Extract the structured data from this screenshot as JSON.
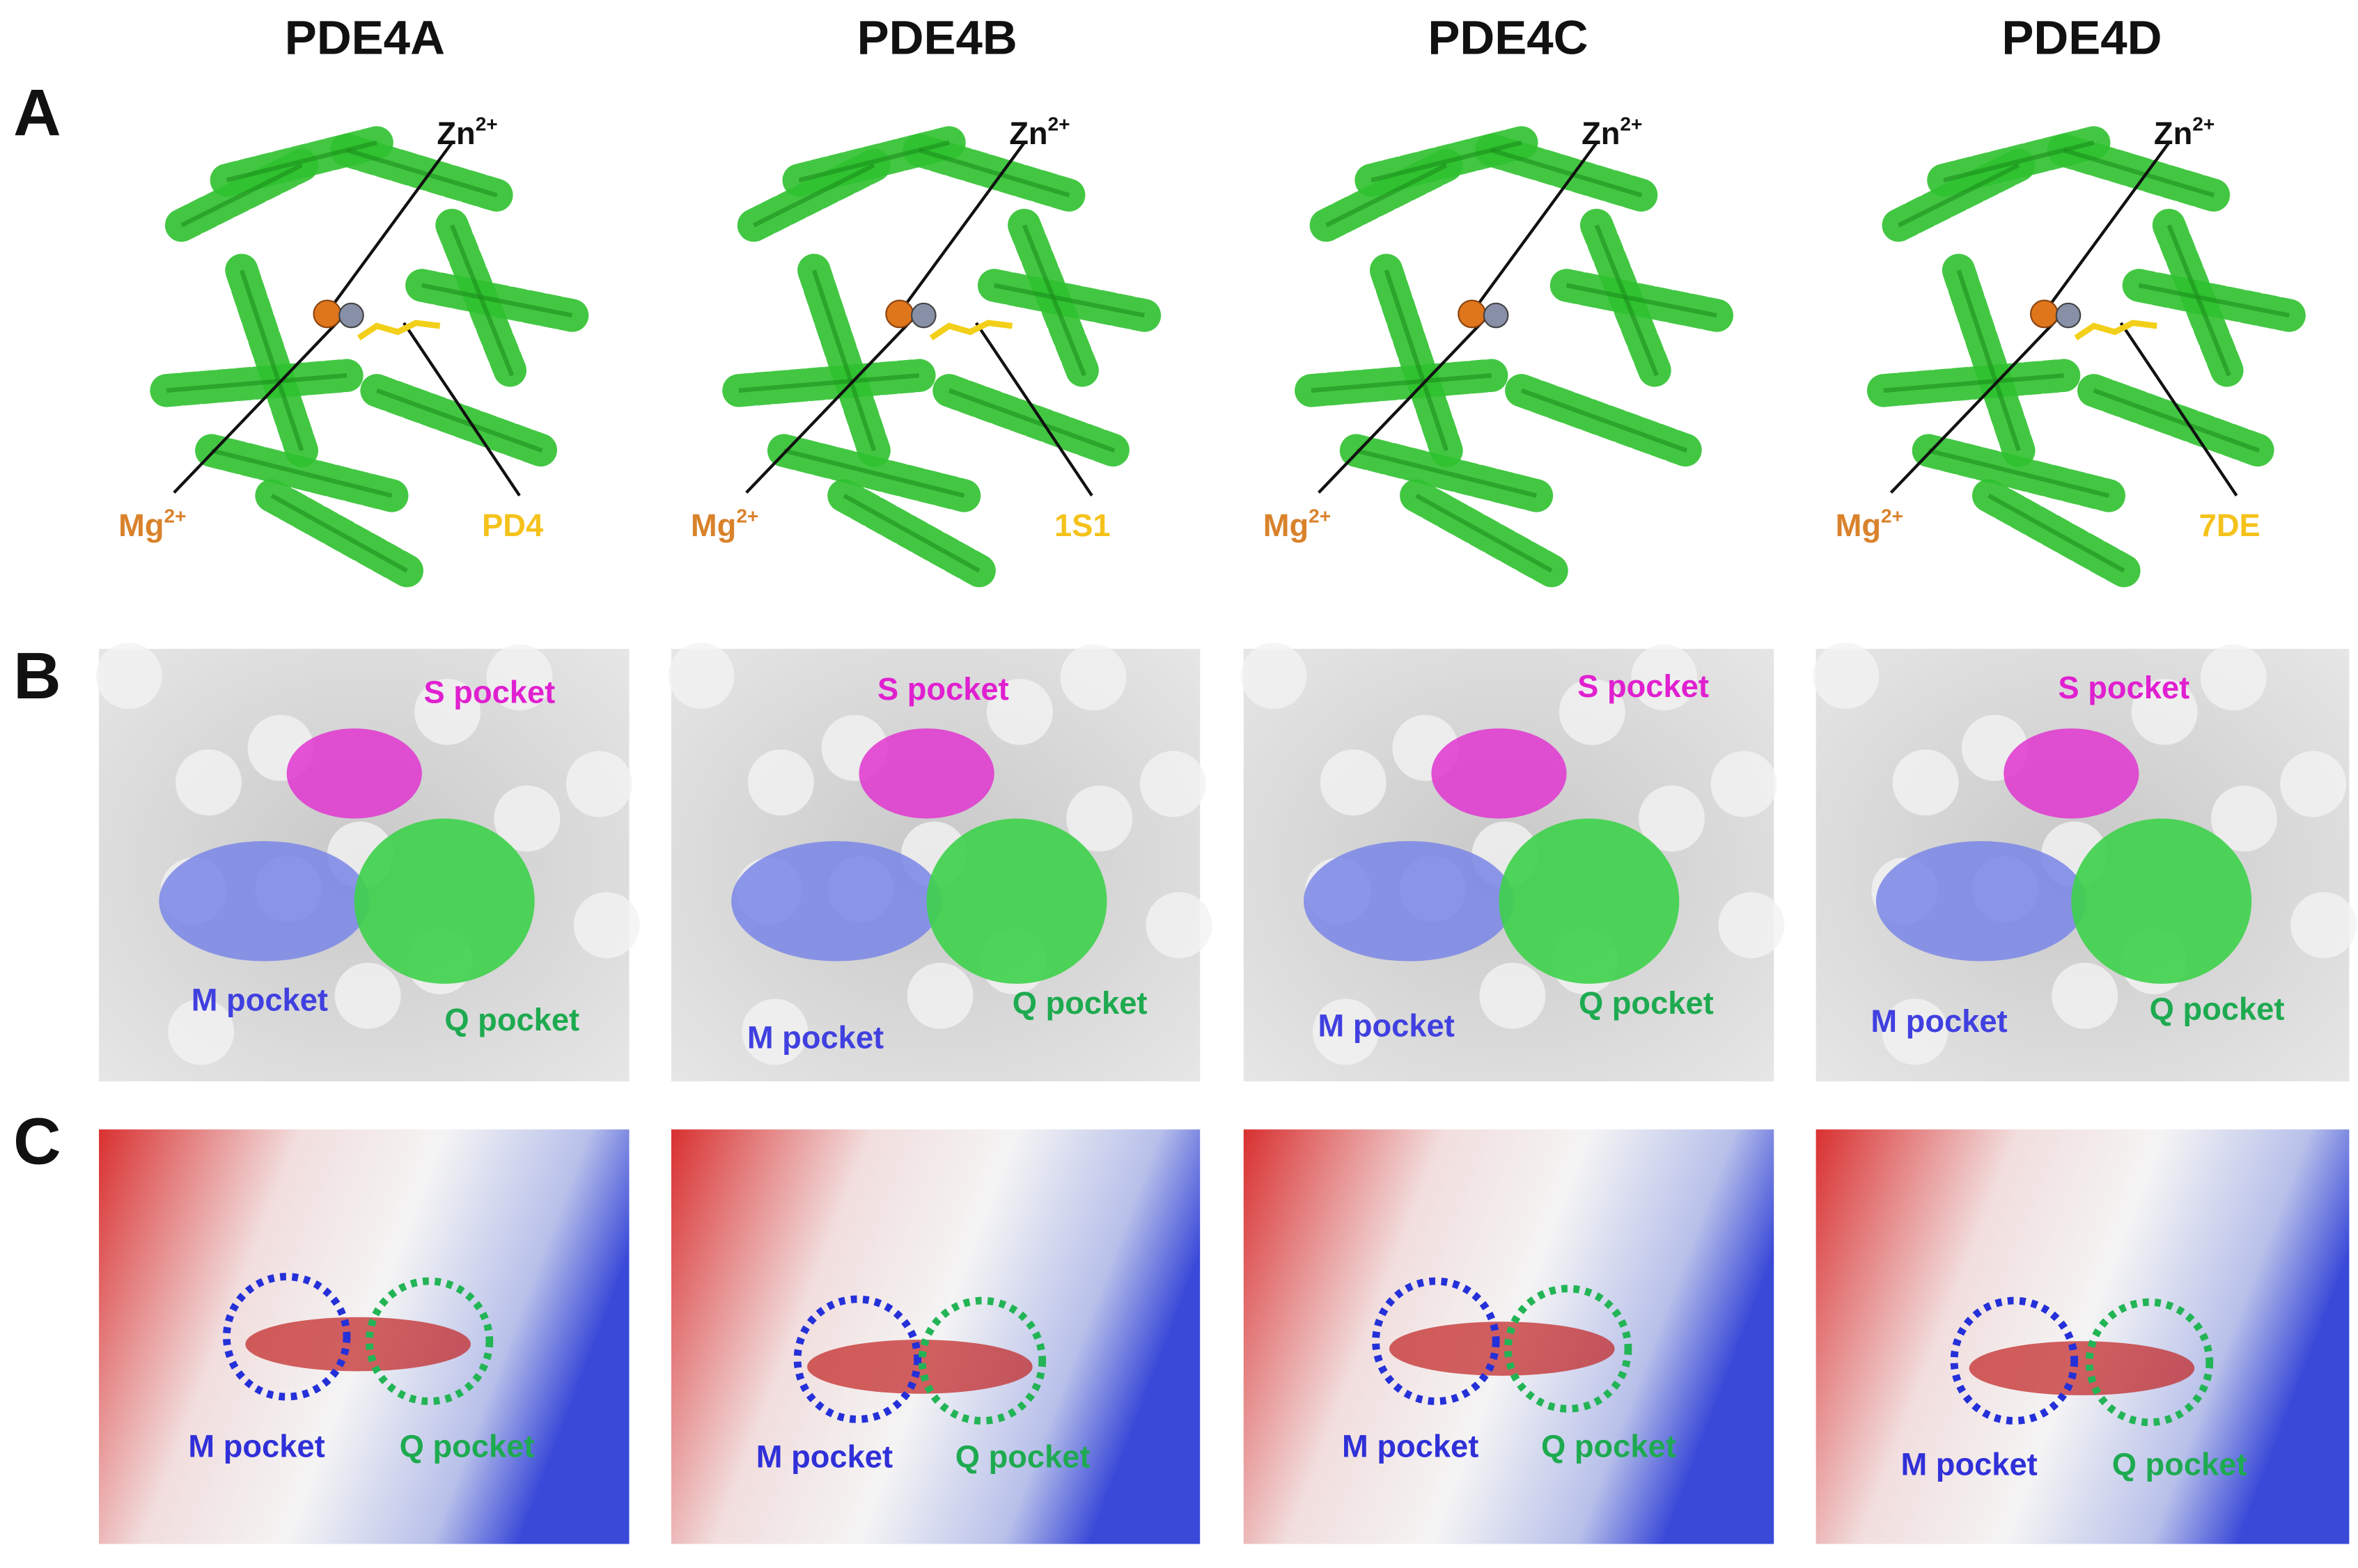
{
  "panel_labels": [
    "A",
    "B",
    "C"
  ],
  "columns": [
    {
      "title": "PDE4A",
      "zn": "Zn",
      "zn_charge": "2+",
      "mg": "Mg",
      "mg_charge": "2+",
      "ligand": "PD4",
      "s_pocket": "S pocket",
      "m_pocket_b": "M pocket",
      "q_pocket_b": "Q pocket",
      "m_pocket_c": "M pocket",
      "q_pocket_c": "Q pocket"
    },
    {
      "title": "PDE4B",
      "zn": "Zn",
      "zn_charge": "2+",
      "mg": "Mg",
      "mg_charge": "2+",
      "ligand": "1S1",
      "s_pocket": "S pocket",
      "m_pocket_b": "M pocket",
      "q_pocket_b": "Q pocket",
      "m_pocket_c": "M pocket",
      "q_pocket_c": "Q pocket"
    },
    {
      "title": "PDE4C",
      "zn": "Zn",
      "zn_charge": "2+",
      "mg": "Mg",
      "mg_charge": "2+",
      "s_pocket": "S pocket",
      "m_pocket_b": "M pocket",
      "q_pocket_b": "Q pocket",
      "m_pocket_c": "M pocket",
      "q_pocket_c": "Q pocket"
    },
    {
      "title": "PDE4D",
      "zn": "Zn",
      "zn_charge": "2+",
      "mg": "Mg",
      "mg_charge": "2+",
      "ligand": "7DE",
      "s_pocket": "S pocket",
      "m_pocket_b": "M pocket",
      "q_pocket_b": "Q pocket",
      "m_pocket_c": "M pocket",
      "q_pocket_c": "Q pocket"
    }
  ]
}
